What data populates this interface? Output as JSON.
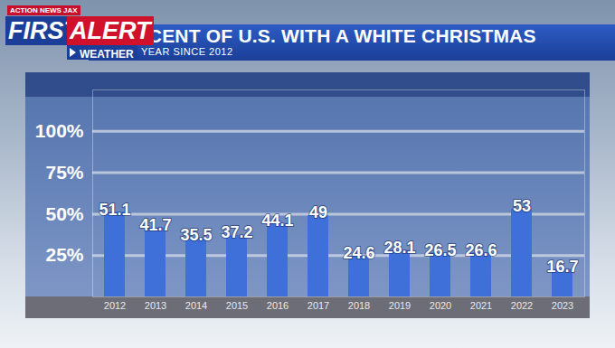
{
  "brand": {
    "station": "ACTION NEWS JAX",
    "first": "FIRST",
    "alert": "ALERT",
    "weather": "WEATHER"
  },
  "chart_data": {
    "type": "bar",
    "title": "PERCENT OF U.S. WITH A WHITE CHRISTMAS",
    "subtitle": "EACH YEAR SINCE 2012",
    "categories": [
      "2012",
      "2013",
      "2014",
      "2015",
      "2016",
      "2017",
      "2018",
      "2019",
      "2020",
      "2021",
      "2022",
      "2023"
    ],
    "values": [
      51.1,
      41.7,
      35.5,
      37.2,
      44.1,
      49,
      24.6,
      28.1,
      26.5,
      26.6,
      53,
      16.7
    ],
    "color": "#3f6fd8",
    "ylim": [
      0,
      125
    ],
    "yticks": [
      {
        "value": 25,
        "label": "25%"
      },
      {
        "value": 50,
        "label": "50%"
      },
      {
        "value": 75,
        "label": "75%"
      },
      {
        "value": 100,
        "label": "100%"
      }
    ],
    "grid": true,
    "data_labels": true
  }
}
